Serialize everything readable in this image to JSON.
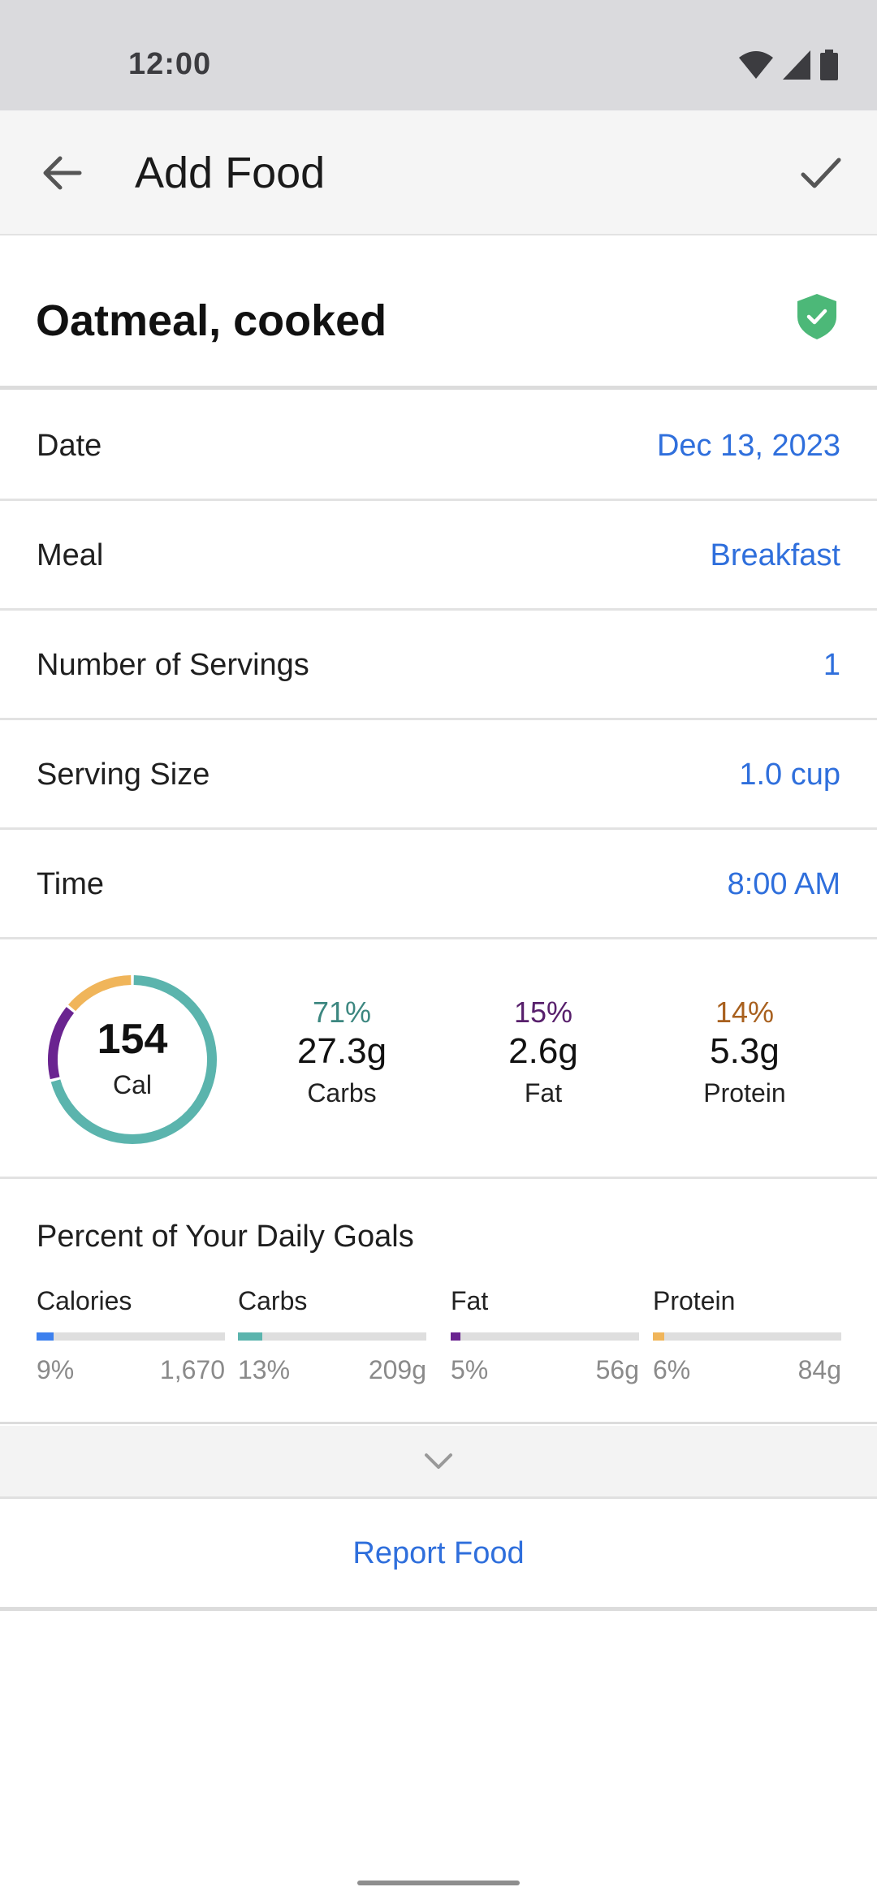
{
  "status": {
    "time": "12:00"
  },
  "app_bar": {
    "title": "Add Food",
    "back_icon": "arrow-back-icon",
    "confirm_icon": "checkmark-icon"
  },
  "food": {
    "name": "Oatmeal, cooked",
    "verified_icon": "shield-check-icon",
    "verified_color": "#4cb878"
  },
  "rows": [
    {
      "label": "Date",
      "value": "Dec 13, 2023"
    },
    {
      "label": "Meal",
      "value": "Breakfast"
    },
    {
      "label": "Number of Servings",
      "value": "1"
    },
    {
      "label": "Serving Size",
      "value": "1.0 cup"
    },
    {
      "label": "Time",
      "value": "8:00 AM"
    }
  ],
  "calories": {
    "value": "154",
    "unit": "Cal"
  },
  "macros": [
    {
      "percent": "71%",
      "amount": "27.3g",
      "label": "Carbs",
      "color": "#5bb4ad",
      "fraction": 0.71
    },
    {
      "percent": "15%",
      "amount": "2.6g",
      "label": "Fat",
      "color": "#6a2490",
      "fraction": 0.15
    },
    {
      "percent": "14%",
      "amount": "5.3g",
      "label": "Protein",
      "color": "#f0b55a",
      "fraction": 0.14
    }
  ],
  "macro_text_colors": {
    "carbs": "#3c8780",
    "fat": "#58206c",
    "protein": "#a8601e"
  },
  "goals": {
    "title": "Percent of Your Daily Goals",
    "items": [
      {
        "label": "Calories",
        "percent": "9%",
        "goal": "1,670",
        "fraction": 0.09,
        "color": "#3d80ee"
      },
      {
        "label": "Carbs",
        "percent": "13%",
        "goal": "209g",
        "fraction": 0.13,
        "color": "#5bb4ad"
      },
      {
        "label": "Fat",
        "percent": "5%",
        "goal": "56g",
        "fraction": 0.05,
        "color": "#6a2490"
      },
      {
        "label": "Protein",
        "percent": "6%",
        "goal": "84g",
        "fraction": 0.06,
        "color": "#f0b55a"
      }
    ]
  },
  "expand_icon": "chevron-down-icon",
  "report": {
    "label": "Report Food"
  },
  "accent_color": "#2f6fdc"
}
